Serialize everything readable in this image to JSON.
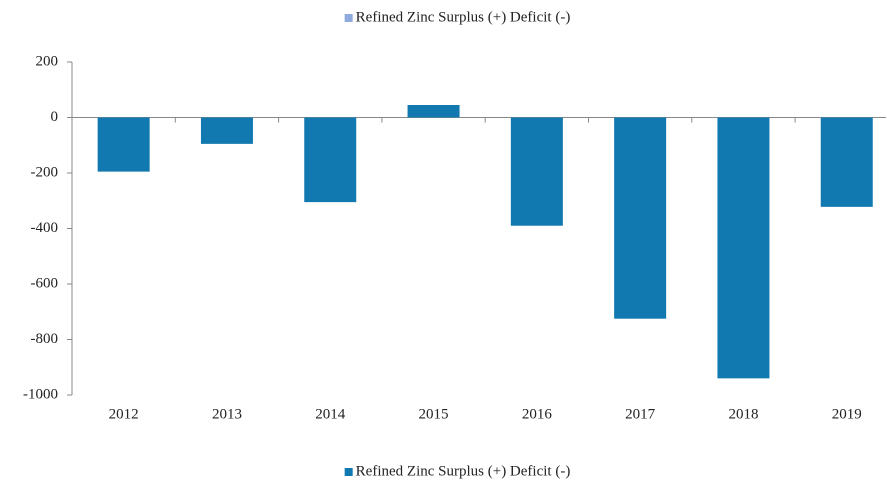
{
  "chart_data": {
    "type": "bar",
    "categories": [
      "2012",
      "2013",
      "2014",
      "2015",
      "2016",
      "2017",
      "2018",
      "2019"
    ],
    "series": [
      {
        "name": "Refined Zinc Surplus (+) Deficit (-)",
        "color": "#1278b0",
        "values": [
          -195,
          -95,
          -305,
          45,
          -390,
          -725,
          -940,
          -322
        ]
      }
    ],
    "ylim": [
      -1000,
      200
    ],
    "yticks": [
      -1000,
      -800,
      -600,
      -400,
      -200,
      0,
      200
    ],
    "legends": [
      {
        "position": "top",
        "color": "#8faadc"
      },
      {
        "position": "bottom",
        "color": "#1278b0"
      }
    ]
  }
}
